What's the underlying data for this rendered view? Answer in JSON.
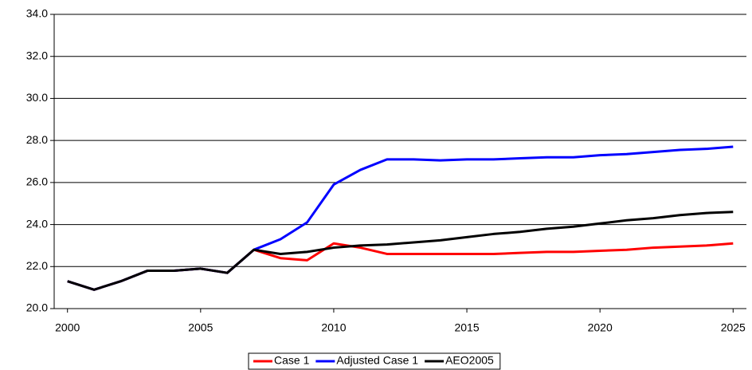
{
  "chart_data": {
    "type": "line",
    "x": [
      2000,
      2001,
      2002,
      2003,
      2004,
      2005,
      2006,
      2007,
      2008,
      2009,
      2010,
      2011,
      2012,
      2013,
      2014,
      2015,
      2016,
      2017,
      2018,
      2019,
      2020,
      2021,
      2022,
      2023,
      2024,
      2025
    ],
    "series": [
      {
        "name": "Case 1",
        "color": "#ff0000",
        "values": [
          21.3,
          20.9,
          21.3,
          21.8,
          21.8,
          21.9,
          21.7,
          22.8,
          22.4,
          22.3,
          23.1,
          22.9,
          22.6,
          22.6,
          22.6,
          22.6,
          22.6,
          22.65,
          22.7,
          22.7,
          22.75,
          22.8,
          22.9,
          22.95,
          23.0,
          23.1
        ]
      },
      {
        "name": "Adjusted Case 1",
        "color": "#0000ff",
        "values": [
          21.3,
          20.9,
          21.3,
          21.8,
          21.8,
          21.9,
          21.7,
          22.8,
          23.3,
          24.1,
          25.9,
          26.6,
          27.1,
          27.1,
          27.05,
          27.1,
          27.1,
          27.15,
          27.2,
          27.2,
          27.3,
          27.35,
          27.45,
          27.55,
          27.6,
          27.7
        ]
      },
      {
        "name": "AEO2005",
        "color": "#000000",
        "values": [
          21.3,
          20.9,
          21.3,
          21.8,
          21.8,
          21.9,
          21.7,
          22.8,
          22.6,
          22.7,
          22.9,
          23.0,
          23.05,
          23.15,
          23.25,
          23.4,
          23.55,
          23.65,
          23.8,
          23.9,
          24.05,
          24.2,
          24.3,
          24.45,
          24.55,
          24.6
        ]
      }
    ],
    "xlim": [
      1999.5,
      2025.5
    ],
    "xticks": [
      2000,
      2005,
      2010,
      2015,
      2020,
      2025
    ],
    "ylim": [
      20,
      34
    ],
    "yticks": [
      {
        "value": 20,
        "label": "20.0"
      },
      {
        "value": 22,
        "label": "22.0"
      },
      {
        "value": 24,
        "label": "24.0"
      },
      {
        "value": 26,
        "label": "26.0"
      },
      {
        "value": 28,
        "label": "28.0"
      },
      {
        "value": 30,
        "label": "30.0"
      },
      {
        "value": 32,
        "label": "32.0"
      },
      {
        "value": 34,
        "label": "34.0"
      }
    ],
    "grid": true,
    "legend": "bottom"
  }
}
